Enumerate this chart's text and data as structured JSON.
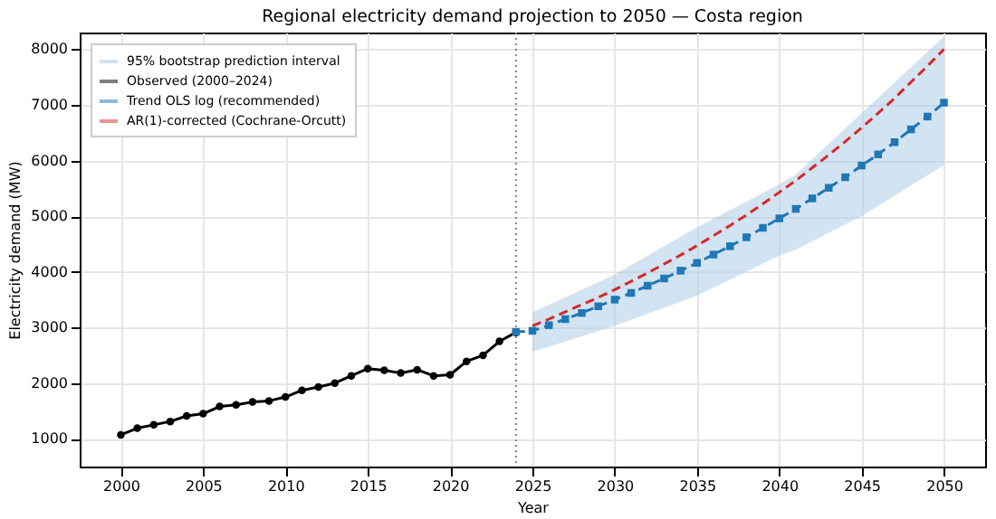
{
  "chart_data": {
    "type": "line",
    "title": "Regional electricity demand projection to 2050 — Costa region",
    "xlabel": "Year",
    "ylabel": "Electricity demand (MW)",
    "series": [
      {
        "name": "95% bootstrap prediction interval",
        "type": "area",
        "color": "#a6c8e4",
        "x": [
          2025,
          2030,
          2035,
          2040,
          2041,
          2045,
          2050
        ],
        "values": [
          null,
          null,
          null,
          null,
          null,
          null,
          null
        ],
        "lower": [
          2560,
          3030,
          3570,
          4290,
          4400,
          5000,
          5920
        ],
        "upper": [
          3270,
          3950,
          4800,
          5570,
          5750,
          6850,
          8230
        ]
      },
      {
        "name": "Observed (2000–2024)",
        "color": "#000000",
        "marker": "circle",
        "line_style": "solid",
        "x": [
          2000,
          2001,
          2002,
          2003,
          2004,
          2005,
          2006,
          2007,
          2008,
          2009,
          2010,
          2011,
          2012,
          2013,
          2014,
          2015,
          2016,
          2017,
          2018,
          2019,
          2020,
          2021,
          2022,
          2023,
          2024
        ],
        "values": [
          1070,
          1190,
          1250,
          1310,
          1410,
          1450,
          1580,
          1610,
          1660,
          1680,
          1750,
          1870,
          1930,
          2000,
          2130,
          2260,
          2230,
          2180,
          2240,
          2130,
          2150,
          2390,
          2500,
          2750,
          2910
        ]
      },
      {
        "name": "Trend OLS log (recommended)",
        "color": "#1f77b4",
        "marker": "square",
        "line_style": "dashed",
        "x": [
          2024,
          2025,
          2026,
          2027,
          2028,
          2029,
          2030,
          2031,
          2032,
          2033,
          2034,
          2035,
          2036,
          2037,
          2038,
          2039,
          2040,
          2041,
          2042,
          2043,
          2044,
          2045,
          2046,
          2047,
          2048,
          2049,
          2050
        ],
        "values": [
          2920,
          2940,
          3040,
          3150,
          3260,
          3380,
          3500,
          3620,
          3750,
          3880,
          4020,
          4160,
          4310,
          4460,
          4620,
          4790,
          4960,
          5130,
          5320,
          5510,
          5700,
          5910,
          6110,
          6330,
          6560,
          6790,
          7040
        ]
      },
      {
        "name": "AR(1)-corrected (Cochrane-Orcutt)",
        "color": "#d62728",
        "marker": "none",
        "line_style": "dashed",
        "x": [
          2025,
          2026,
          2027,
          2028,
          2029,
          2030,
          2031,
          2032,
          2033,
          2034,
          2035,
          2036,
          2037,
          2038,
          2039,
          2040,
          2041,
          2042,
          2043,
          2044,
          2045,
          2046,
          2047,
          2048,
          2049,
          2050
        ],
        "values": [
          3030,
          3150,
          3280,
          3410,
          3540,
          3680,
          3830,
          3980,
          4140,
          4300,
          4470,
          4650,
          4830,
          5020,
          5220,
          5430,
          5640,
          5870,
          6100,
          6340,
          6590,
          6850,
          7120,
          7410,
          7700,
          8000
        ]
      }
    ],
    "ref_lines": [
      {
        "axis": "x",
        "value": 2024,
        "color": "#808080",
        "line_style": "dotted"
      }
    ],
    "xlim": [
      1997.5,
      2052.5
    ],
    "xticks": [
      2000,
      2005,
      2010,
      2015,
      2020,
      2025,
      2030,
      2035,
      2040,
      2045,
      2050
    ],
    "ylim": [
      500,
      8300
    ],
    "yticks": [
      1000,
      2000,
      3000,
      4000,
      5000,
      6000,
      7000,
      8000
    ],
    "grid": true,
    "legend": "top left"
  }
}
